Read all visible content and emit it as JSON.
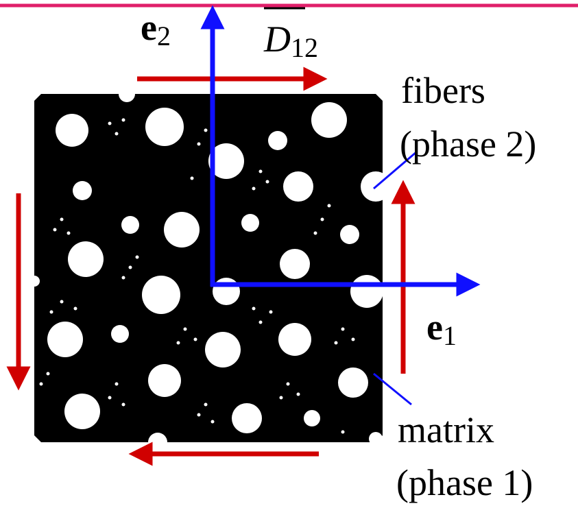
{
  "axis_2": {
    "symbol": "e",
    "subscript": "2"
  },
  "axis_1": {
    "symbol": "e",
    "subscript": "1"
  },
  "effective_property": {
    "symbol": "D",
    "subscript": "12"
  },
  "fibers_label": {
    "name": "fibers",
    "phase": "(phase 2)"
  },
  "matrix_label": {
    "name": "matrix",
    "phase": "(phase 1)"
  }
}
